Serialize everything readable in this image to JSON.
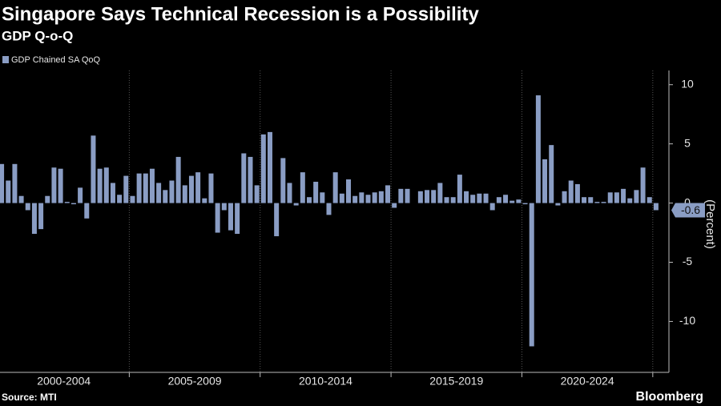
{
  "chart_data": {
    "type": "bar",
    "title": "Singapore Says Technical Recession is a Possibility",
    "subtitle": "GDP Q-o-Q",
    "y_axis_label": "(Percent)",
    "source": "Source: MTI",
    "brand": "Bloomberg",
    "x_group_labels": [
      "2000-2004",
      "2005-2009",
      "2010-2014",
      "2015-2019",
      "2020-2024"
    ],
    "categories": [
      null,
      null,
      null,
      null,
      null,
      null,
      null,
      null,
      null,
      null,
      null,
      null,
      null,
      null,
      null,
      null,
      null,
      null,
      null,
      null,
      null,
      null,
      null,
      null,
      null,
      null,
      null,
      null,
      null,
      null,
      null,
      null,
      null,
      null,
      null,
      null,
      null,
      null,
      null,
      null,
      null,
      null,
      null,
      null,
      null,
      null,
      null,
      null,
      null,
      null,
      null,
      null,
      null,
      null,
      null,
      null,
      null,
      null,
      null,
      null,
      null,
      null,
      null,
      null,
      null,
      null,
      null,
      null,
      null,
      null,
      null,
      null,
      null,
      null,
      null,
      null,
      null,
      null,
      null,
      null,
      null,
      null,
      null,
      null,
      null,
      null,
      null,
      null,
      null,
      null,
      null,
      null,
      null,
      null,
      null,
      null,
      null,
      null,
      null,
      null,
      null
    ],
    "series": [
      {
        "name": "GDP Chained SA QoQ",
        "color": "#8a9dc4",
        "values": [
          3.3,
          1.9,
          3.3,
          0.6,
          -0.6,
          -2.6,
          -2.2,
          0.6,
          3.0,
          2.9,
          0.1,
          -0.1,
          1.3,
          -1.3,
          5.7,
          2.9,
          3.0,
          1.7,
          0.7,
          2.3,
          0.6,
          2.5,
          2.5,
          2.9,
          1.7,
          1.1,
          1.9,
          3.9,
          1.5,
          2.3,
          2.6,
          0.4,
          2.5,
          -2.5,
          -0.6,
          -2.3,
          -2.6,
          4.2,
          3.9,
          1.5,
          5.8,
          6.0,
          -2.8,
          3.8,
          1.7,
          -0.2,
          2.6,
          0.5,
          1.8,
          0.9,
          -1.0,
          2.6,
          0.8,
          2.0,
          0.6,
          0.9,
          0.7,
          0.9,
          1.0,
          1.5,
          -0.4,
          1.2,
          1.2,
          0.0,
          1.0,
          1.1,
          1.1,
          1.7,
          0.5,
          0.5,
          2.4,
          1.0,
          0.7,
          0.8,
          0.8,
          -0.6,
          0.5,
          0.7,
          0.2,
          0.3,
          -0.1,
          -12.1,
          9.1,
          3.7,
          4.9,
          -0.2,
          1.0,
          1.9,
          1.6,
          0.5,
          0.5,
          0.1,
          0.1,
          0.9,
          0.9,
          1.2,
          0.4,
          1.1,
          3.0,
          0.5,
          -0.6
        ]
      }
    ],
    "ylim": [
      -14.3,
      11.2
    ],
    "yticks": [
      10,
      5,
      0,
      -5,
      -10
    ],
    "grid": true
  }
}
